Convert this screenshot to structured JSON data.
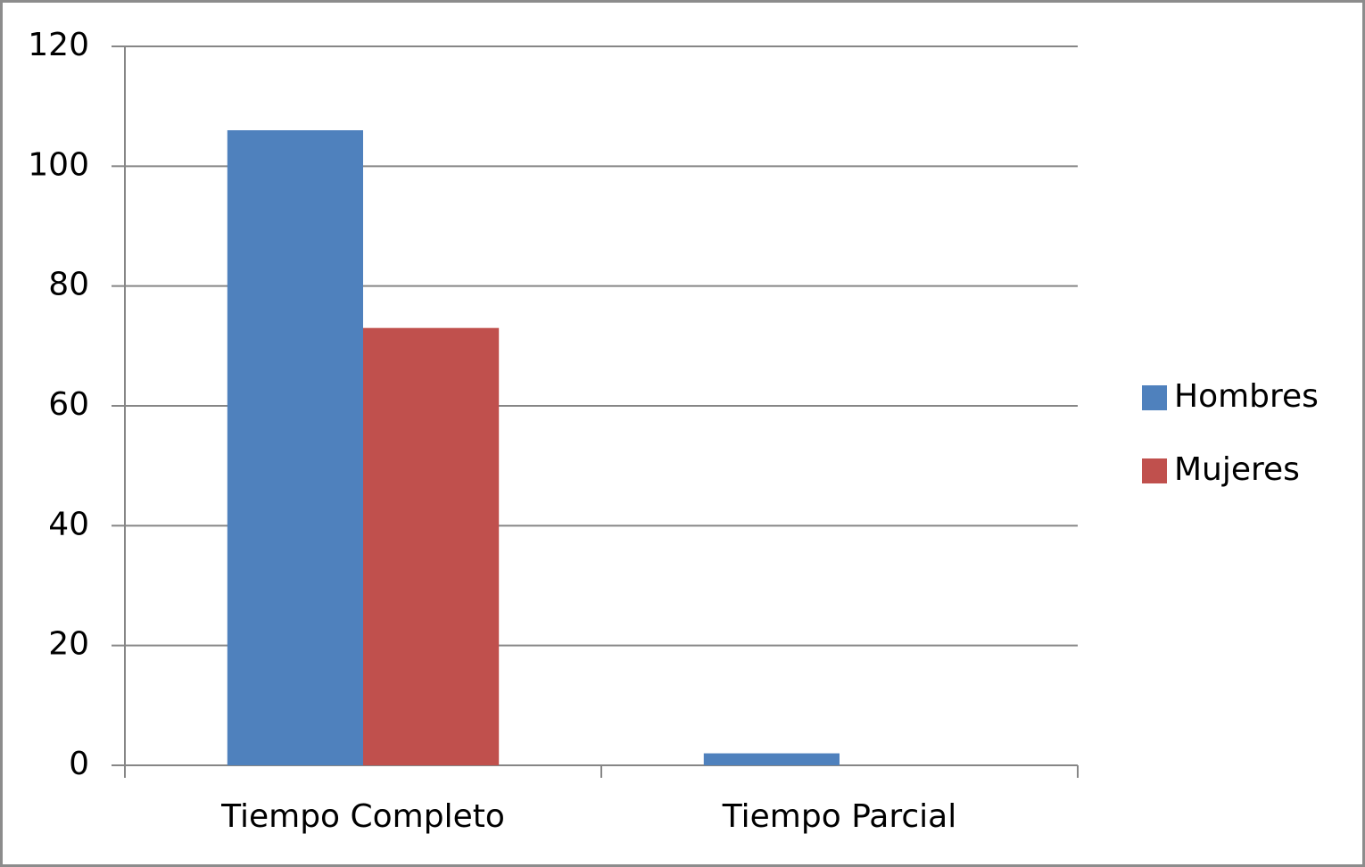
{
  "chart_data": {
    "type": "bar",
    "categories": [
      "Tiempo Completo",
      "Tiempo Parcial"
    ],
    "series": [
      {
        "name": "Hombres",
        "color": "#4f81bd",
        "values": [
          106,
          2
        ]
      },
      {
        "name": "Mujeres",
        "color": "#c0504d",
        "values": [
          73,
          0
        ]
      }
    ],
    "ylim": [
      0,
      120
    ],
    "yticks": [
      0,
      20,
      40,
      60,
      80,
      100,
      120
    ],
    "grid": true,
    "legend": "right"
  }
}
